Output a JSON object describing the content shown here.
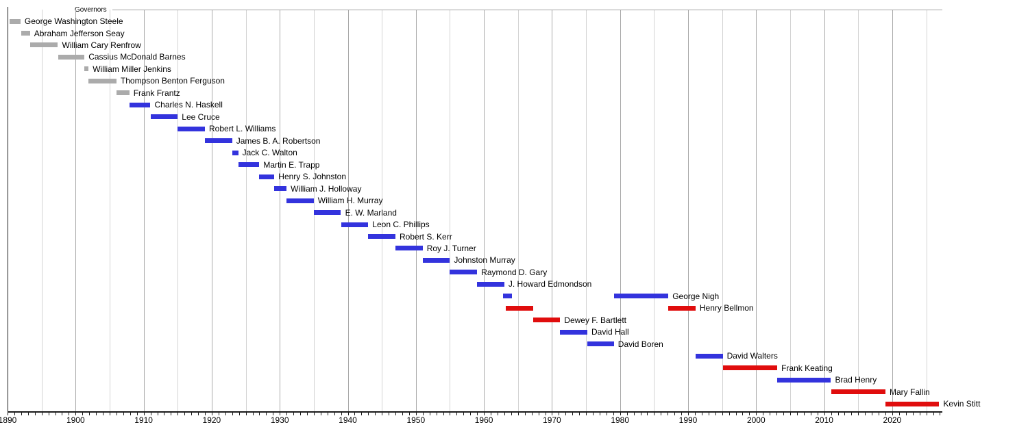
{
  "chart_data": {
    "type": "timeline",
    "title": "Governors",
    "x_axis": {
      "start": 1890,
      "end": 2027.4,
      "tick_step": 1,
      "grid_step": 5,
      "decade_labels": [
        1890,
        1900,
        1910,
        1920,
        1930,
        1940,
        1950,
        1960,
        1970,
        1980,
        1990,
        2000,
        2010,
        2020
      ]
    },
    "legend": {
      "territorial": "gray",
      "democratic": "blue",
      "republican": "red"
    },
    "colors": {
      "territorial": "#ABABAB",
      "democratic": "#3333DD",
      "republican": "#E00D0D",
      "axis": "#1A1A1A",
      "grid_decade": "#A8A8A8",
      "grid_minor": "#D2D2D2",
      "title_rule": "#A0A0A0",
      "text": "#000000",
      "background": "#FFFFFF"
    },
    "rows": [
      {
        "name": "George Washington Steele",
        "party": "territorial",
        "bars": [
          {
            "from": 1890.3,
            "till": 1891.9
          }
        ]
      },
      {
        "name": "Abraham Jefferson Seay",
        "party": "territorial",
        "bars": [
          {
            "from": 1892.0,
            "till": 1893.3
          }
        ]
      },
      {
        "name": "William Cary Renfrow",
        "party": "territorial",
        "bars": [
          {
            "from": 1893.3,
            "till": 1897.4
          }
        ]
      },
      {
        "name": "Cassius McDonald Barnes",
        "party": "territorial",
        "bars": [
          {
            "from": 1897.4,
            "till": 1901.3
          }
        ]
      },
      {
        "name": "William Miller Jenkins",
        "party": "territorial",
        "bars": [
          {
            "from": 1901.3,
            "till": 1901.9
          }
        ]
      },
      {
        "name": "Thompson Benton Ferguson",
        "party": "territorial",
        "bars": [
          {
            "from": 1901.9,
            "till": 1906.0
          }
        ]
      },
      {
        "name": "Frank Frantz",
        "party": "territorial",
        "bars": [
          {
            "from": 1906.0,
            "till": 1907.9
          }
        ]
      },
      {
        "name": "Charles N. Haskell",
        "party": "democratic",
        "bars": [
          {
            "from": 1907.9,
            "till": 1911.0
          }
        ]
      },
      {
        "name": "Lee Cruce",
        "party": "democratic",
        "bars": [
          {
            "from": 1911.0,
            "till": 1915.0
          }
        ]
      },
      {
        "name": "Robert L. Williams",
        "party": "democratic",
        "bars": [
          {
            "from": 1915.0,
            "till": 1919.0
          }
        ]
      },
      {
        "name": "James B. A. Robertson",
        "party": "democratic",
        "bars": [
          {
            "from": 1919.0,
            "till": 1923.0
          }
        ]
      },
      {
        "name": "Jack C. Walton",
        "party": "democratic",
        "bars": [
          {
            "from": 1923.0,
            "till": 1923.9
          }
        ]
      },
      {
        "name": "Martin E. Trapp",
        "party": "democratic",
        "bars": [
          {
            "from": 1923.9,
            "till": 1927.0
          }
        ]
      },
      {
        "name": "Henry S. Johnston",
        "party": "democratic",
        "bars": [
          {
            "from": 1927.0,
            "till": 1929.2
          }
        ]
      },
      {
        "name": "William J. Holloway",
        "party": "democratic",
        "bars": [
          {
            "from": 1929.2,
            "till": 1931.0
          }
        ]
      },
      {
        "name": "William H. Murray",
        "party": "democratic",
        "bars": [
          {
            "from": 1931.0,
            "till": 1935.0
          }
        ]
      },
      {
        "name": "E. W. Marland",
        "party": "democratic",
        "bars": [
          {
            "from": 1935.0,
            "till": 1939.0
          }
        ]
      },
      {
        "name": "Leon C. Phillips",
        "party": "democratic",
        "bars": [
          {
            "from": 1939.0,
            "till": 1943.0
          }
        ]
      },
      {
        "name": "Robert S. Kerr",
        "party": "democratic",
        "bars": [
          {
            "from": 1943.0,
            "till": 1947.0
          }
        ]
      },
      {
        "name": "Roy J. Turner",
        "party": "democratic",
        "bars": [
          {
            "from": 1947.0,
            "till": 1951.0
          }
        ]
      },
      {
        "name": "Johnston Murray",
        "party": "democratic",
        "bars": [
          {
            "from": 1951.0,
            "till": 1955.0
          }
        ]
      },
      {
        "name": "Raymond D. Gary",
        "party": "democratic",
        "bars": [
          {
            "from": 1955.0,
            "till": 1959.0
          }
        ]
      },
      {
        "name": "J. Howard Edmondson",
        "party": "democratic",
        "bars": [
          {
            "from": 1959.0,
            "till": 1963.0
          }
        ]
      },
      {
        "name": "George Nigh",
        "party": "democratic",
        "bars": [
          {
            "from": 1962.8,
            "till": 1964.1
          },
          {
            "from": 1979.1,
            "till": 1987.1
          }
        ]
      },
      {
        "name": "Henry Bellmon",
        "party": "republican",
        "bars": [
          {
            "from": 1963.2,
            "till": 1967.2
          },
          {
            "from": 1987.1,
            "till": 1991.1
          }
        ]
      },
      {
        "name": "Dewey F. Bartlett",
        "party": "republican",
        "bars": [
          {
            "from": 1967.2,
            "till": 1971.2
          }
        ]
      },
      {
        "name": "David Hall",
        "party": "democratic",
        "bars": [
          {
            "from": 1971.2,
            "till": 1975.2
          }
        ]
      },
      {
        "name": "David Boren",
        "party": "democratic",
        "bars": [
          {
            "from": 1975.2,
            "till": 1979.1
          }
        ]
      },
      {
        "name": "David Walters",
        "party": "democratic",
        "bars": [
          {
            "from": 1991.1,
            "till": 1995.1
          }
        ]
      },
      {
        "name": "Frank Keating",
        "party": "republican",
        "bars": [
          {
            "from": 1995.1,
            "till": 2003.1
          }
        ]
      },
      {
        "name": "Brad Henry",
        "party": "democratic",
        "bars": [
          {
            "from": 2003.1,
            "till": 2011.0
          }
        ]
      },
      {
        "name": "Mary Fallin",
        "party": "republican",
        "bars": [
          {
            "from": 2011.0,
            "till": 2019.0
          }
        ]
      },
      {
        "name": "Kevin Stitt",
        "party": "republican",
        "bars": [
          {
            "from": 2019.0,
            "till": 2026.9
          }
        ]
      }
    ]
  }
}
